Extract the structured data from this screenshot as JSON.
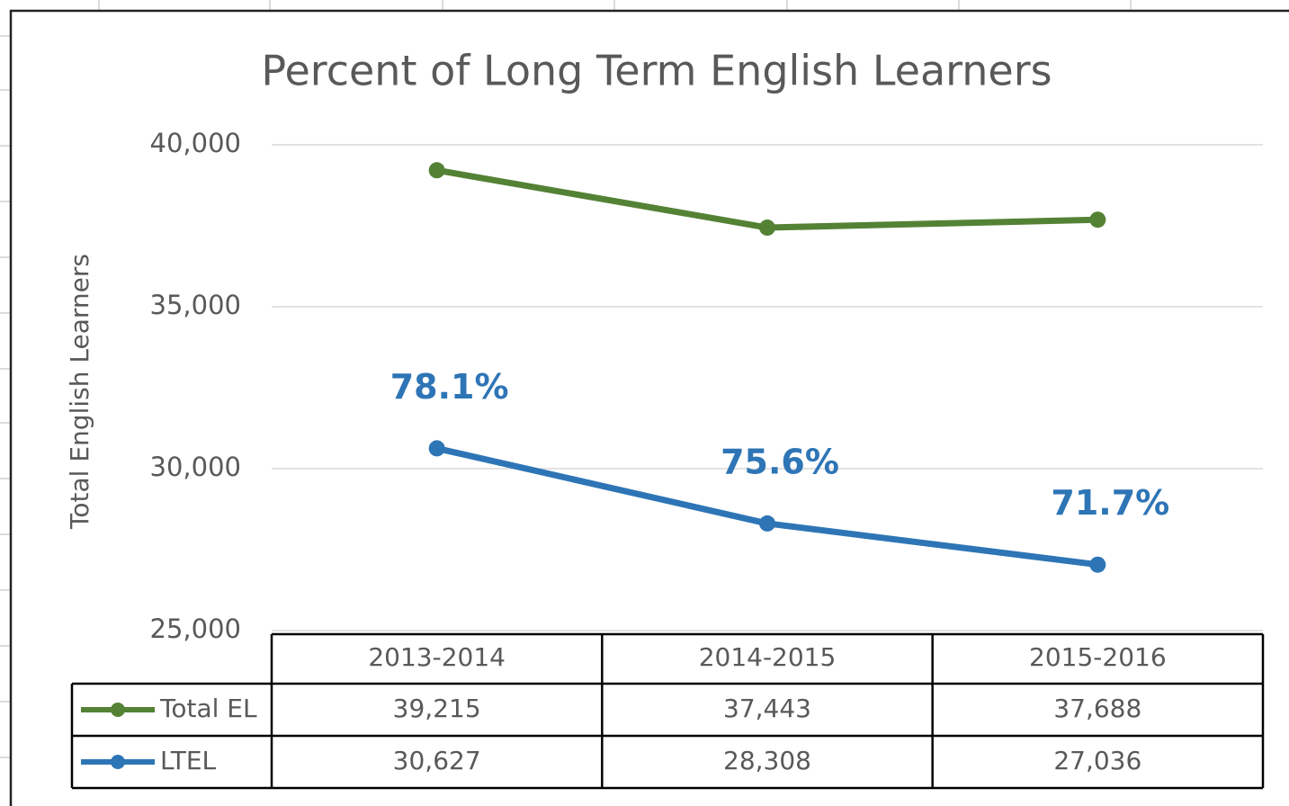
{
  "chart_data": {
    "type": "line",
    "title": "Percent of Long Term English Learners",
    "y_axis_label": "Total English Learners",
    "categories": [
      "2013-2014",
      "2014-2015",
      "2015-2016"
    ],
    "series": [
      {
        "name": "Total EL",
        "color": "#548235",
        "values": [
          39215,
          37443,
          37688
        ],
        "value_labels": [
          "39,215",
          "37,443",
          "37,688"
        ]
      },
      {
        "name": "LTEL",
        "color": "#2e75b6",
        "values": [
          30627,
          28308,
          27036
        ],
        "value_labels": [
          "30,627",
          "28,308",
          "27,036"
        ]
      }
    ],
    "annotations": [
      "78.1%",
      "75.6%",
      "71.7%"
    ],
    "ylim": [
      25000,
      40000
    ],
    "yticks": [
      {
        "value": 25000,
        "label": "25,000"
      },
      {
        "value": 30000,
        "label": "30,000"
      },
      {
        "value": 35000,
        "label": "35,000"
      },
      {
        "value": 40000,
        "label": "40,000"
      }
    ],
    "grid": true
  }
}
